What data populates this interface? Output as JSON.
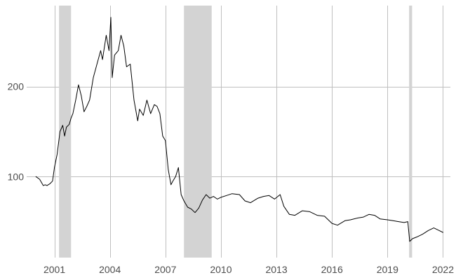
{
  "chart_data": {
    "type": "line",
    "title": "",
    "xlabel": "",
    "ylabel": "",
    "xlim": [
      1999.5,
      2022.4
    ],
    "ylim": [
      10,
      290
    ],
    "grid": true,
    "legend": "none",
    "x_ticks": [
      {
        "value": 2001,
        "label": "2001"
      },
      {
        "value": 2004,
        "label": "2004"
      },
      {
        "value": 2007,
        "label": "2007"
      },
      {
        "value": 2010,
        "label": "2010"
      },
      {
        "value": 2013,
        "label": "2013"
      },
      {
        "value": 2016,
        "label": "2016"
      },
      {
        "value": 2019,
        "label": "2019"
      },
      {
        "value": 2022,
        "label": "2022"
      }
    ],
    "y_ticks": [
      {
        "value": 100,
        "label": "100"
      },
      {
        "value": 200,
        "label": "200"
      }
    ],
    "shaded_periods": [
      {
        "start": 2001.25,
        "end": 2001.9
      },
      {
        "start": 2008.0,
        "end": 2009.5
      },
      {
        "start": 2020.17,
        "end": 2020.33
      }
    ],
    "series": [
      {
        "color": "#000000",
        "x": [
          2000.0,
          2000.2,
          2000.4,
          2000.5,
          2000.6,
          2000.75,
          2000.9,
          2001.0,
          2001.15,
          2001.3,
          2001.45,
          2001.55,
          2001.65,
          2001.8,
          2001.9,
          2002.0,
          2002.15,
          2002.3,
          2002.45,
          2002.6,
          2002.75,
          2002.9,
          2003.1,
          2003.3,
          2003.5,
          2003.6,
          2003.8,
          2003.95,
          2004.05,
          2004.12,
          2004.25,
          2004.45,
          2004.6,
          2004.75,
          2004.9,
          2005.1,
          2005.3,
          2005.5,
          2005.6,
          2005.8,
          2006.0,
          2006.2,
          2006.4,
          2006.55,
          2006.7,
          2006.85,
          2007.0,
          2007.15,
          2007.3,
          2007.4,
          2007.55,
          2007.7,
          2007.85,
          2008.0,
          2008.2,
          2008.4,
          2008.6,
          2008.8,
          2009.0,
          2009.2,
          2009.4,
          2009.6,
          2009.8,
          2010.0,
          2010.3,
          2010.6,
          2011.0,
          2011.3,
          2011.6,
          2012.0,
          2012.3,
          2012.6,
          2012.9,
          2013.2,
          2013.4,
          2013.7,
          2014.0,
          2014.4,
          2014.8,
          2015.2,
          2015.6,
          2016.0,
          2016.3,
          2016.7,
          2017.0,
          2017.4,
          2017.7,
          2018.0,
          2018.3,
          2018.6,
          2019.0,
          2019.3,
          2019.6,
          2019.9,
          2020.1,
          2020.2,
          2020.35,
          2020.6,
          2020.9,
          2021.2,
          2021.5,
          2021.8,
          2022.0
        ],
        "y": [
          100,
          97,
          90,
          91,
          90,
          92,
          95,
          110,
          125,
          150,
          157,
          145,
          155,
          158,
          165,
          170,
          185,
          202,
          190,
          172,
          178,
          185,
          210,
          225,
          240,
          230,
          257,
          240,
          277,
          210,
          235,
          240,
          257,
          245,
          222,
          225,
          185,
          162,
          175,
          168,
          185,
          170,
          180,
          178,
          170,
          145,
          140,
          108,
          91,
          95,
          100,
          110,
          80,
          73,
          66,
          64,
          60,
          65,
          74,
          80,
          76,
          78,
          75,
          77,
          79,
          81,
          80,
          73,
          71,
          76,
          78,
          79,
          75,
          80,
          67,
          58,
          57,
          62,
          61,
          57,
          56,
          48,
          46,
          51,
          52,
          54,
          55,
          58,
          57,
          53,
          52,
          51,
          50,
          49,
          50,
          28,
          31,
          33,
          36,
          40,
          43,
          40,
          38
        ]
      }
    ]
  }
}
